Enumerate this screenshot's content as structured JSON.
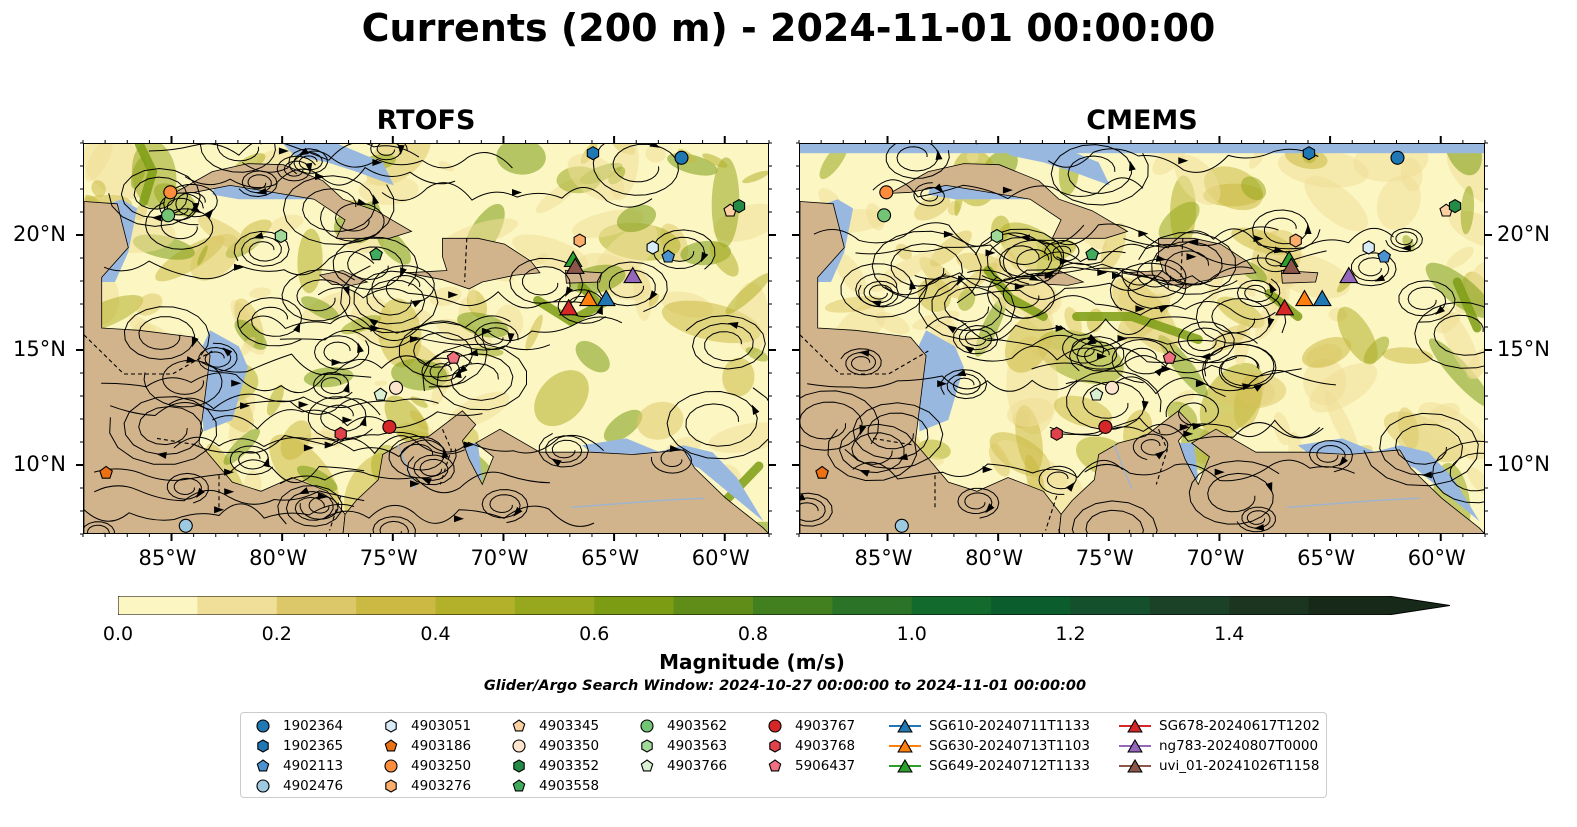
{
  "title": "Currents (200 m) - 2024-11-01 00:00:00",
  "panels": [
    {
      "title": "RTOFS"
    },
    {
      "title": "CMEMS"
    }
  ],
  "map": {
    "lon_range": [
      -89,
      -58
    ],
    "lat_range": [
      7,
      24
    ],
    "land_color": "#d2b48c",
    "shelf_water_color": "#99b8e0",
    "lon_ticks": [
      "85°W",
      "80°W",
      "75°W",
      "70°W",
      "65°W",
      "60°W"
    ],
    "lon_tick_values": [
      -85,
      -80,
      -75,
      -70,
      -65,
      -60
    ],
    "lat_ticks": [
      "20°N",
      "15°N",
      "10°N"
    ],
    "lat_tick_values": [
      20,
      15,
      10
    ]
  },
  "colorbar": {
    "title": "Magnitude (m/s)",
    "range": [
      0,
      1.6
    ],
    "extend": "max",
    "tick_labels": [
      "0.0",
      "0.2",
      "0.4",
      "0.6",
      "0.8",
      "1.0",
      "1.2",
      "1.4"
    ],
    "tick_values": [
      0,
      0.2,
      0.4,
      0.6,
      0.8,
      1.0,
      1.2,
      1.4
    ],
    "colors": [
      "#fcf6c3",
      "#efdf98",
      "#dcc869",
      "#cbb944",
      "#b3b12a",
      "#97a81e",
      "#7c9c14",
      "#5f8d18",
      "#42801f",
      "#2b7326",
      "#126a2d",
      "#0b5d2e",
      "#15502c",
      "#1b4227",
      "#1b3520",
      "#172a19"
    ]
  },
  "search_window": "Glider/Argo Search Window: 2024-10-27 00:00:00 to 2024-11-01 00:00:00",
  "legend": [
    {
      "label": "1902364",
      "marker": "circle",
      "color": "#1f77b4"
    },
    {
      "label": "1902365",
      "marker": "hexagon",
      "color": "#1f77b4"
    },
    {
      "label": "4902113",
      "marker": "pentagon",
      "color": "#4a93d0"
    },
    {
      "label": "4902476",
      "marker": "circle",
      "color": "#9ecae1"
    },
    {
      "label": "4903051",
      "marker": "hexagon",
      "color": "#d8ecf7"
    },
    {
      "label": "4903186",
      "marker": "pentagon",
      "color": "#ec7014"
    },
    {
      "label": "4903250",
      "marker": "circle",
      "color": "#fd8d3c"
    },
    {
      "label": "4903276",
      "marker": "hexagon",
      "color": "#fdae6b"
    },
    {
      "label": "4903345",
      "marker": "pentagon",
      "color": "#fdd0a2"
    },
    {
      "label": "4903350",
      "marker": "circle",
      "color": "#fde4cc"
    },
    {
      "label": "4903352",
      "marker": "hexagon",
      "color": "#238b45"
    },
    {
      "label": "4903558",
      "marker": "pentagon",
      "color": "#41ab5d"
    },
    {
      "label": "4903562",
      "marker": "circle",
      "color": "#74c476"
    },
    {
      "label": "4903563",
      "marker": "hexagon",
      "color": "#a1d99b"
    },
    {
      "label": "4903766",
      "marker": "pentagon",
      "color": "#d9f0d3"
    },
    {
      "label": "4903767",
      "marker": "circle",
      "color": "#d62728"
    },
    {
      "label": "4903768",
      "marker": "hexagon",
      "color": "#e0424b"
    },
    {
      "label": "5906437",
      "marker": "pentagon",
      "color": "#f07080"
    },
    {
      "label": "SG610-20240711T1133",
      "marker": "triangle",
      "color": "#1f77b4"
    },
    {
      "label": "SG630-20240713T1103",
      "marker": "triangle",
      "color": "#ff7f0e"
    },
    {
      "label": "SG649-20240712T1133",
      "marker": "triangle",
      "color": "#2ca02c"
    },
    {
      "label": "SG678-20240617T1202",
      "marker": "triangle",
      "color": "#d62728"
    },
    {
      "label": "ng783-20240807T0000",
      "marker": "triangle",
      "color": "#9467bd"
    },
    {
      "label": "uvi_01-20241026T1158",
      "marker": "triangle",
      "color": "#8c564b"
    }
  ],
  "platform_positions": [
    {
      "label": "1902364",
      "lon": -62,
      "lat": 23.4
    },
    {
      "label": "1902365",
      "lon": -66,
      "lat": 23.6
    },
    {
      "label": "4902113",
      "lon": -62.6,
      "lat": 19.1
    },
    {
      "label": "4902476",
      "lon": -84.4,
      "lat": 7.4
    },
    {
      "label": "4903051",
      "lon": -63.3,
      "lat": 19.5
    },
    {
      "label": "4903186",
      "lon": -88,
      "lat": 9.7
    },
    {
      "label": "4903250",
      "lon": -85.1,
      "lat": 21.9
    },
    {
      "label": "4903276",
      "lon": -66.6,
      "lat": 19.8
    },
    {
      "label": "4903345",
      "lon": -59.8,
      "lat": 21.1
    },
    {
      "label": "4903350",
      "lon": -74.9,
      "lat": 13.4
    },
    {
      "label": "4903352",
      "lon": -59.4,
      "lat": 21.3
    },
    {
      "label": "4903558",
      "lon": -75.8,
      "lat": 19.2
    },
    {
      "label": "4903562",
      "lon": -85.2,
      "lat": 20.9
    },
    {
      "label": "4903563",
      "lon": -80.1,
      "lat": 20.0
    },
    {
      "label": "4903766",
      "lon": -75.6,
      "lat": 13.1
    },
    {
      "label": "4903767",
      "lon": -75.2,
      "lat": 11.7
    },
    {
      "label": "4903768",
      "lon": -77.4,
      "lat": 11.4
    },
    {
      "label": "5906437",
      "lon": -72.3,
      "lat": 14.7
    },
    {
      "label": "SG610-20240711T1133",
      "lon": -65.4,
      "lat": 17.3
    },
    {
      "label": "SG630-20240713T1103",
      "lon": -66.2,
      "lat": 17.3
    },
    {
      "label": "SG649-20240712T1133",
      "lon": -66.9,
      "lat": 19.0
    },
    {
      "label": "SG678-20240617T1202",
      "lon": -67.1,
      "lat": 16.9
    },
    {
      "label": "ng783-20240807T0000",
      "lon": -64.2,
      "lat": 18.3
    },
    {
      "label": "uvi_01-20241026T1158",
      "lon": -66.8,
      "lat": 18.7
    }
  ]
}
